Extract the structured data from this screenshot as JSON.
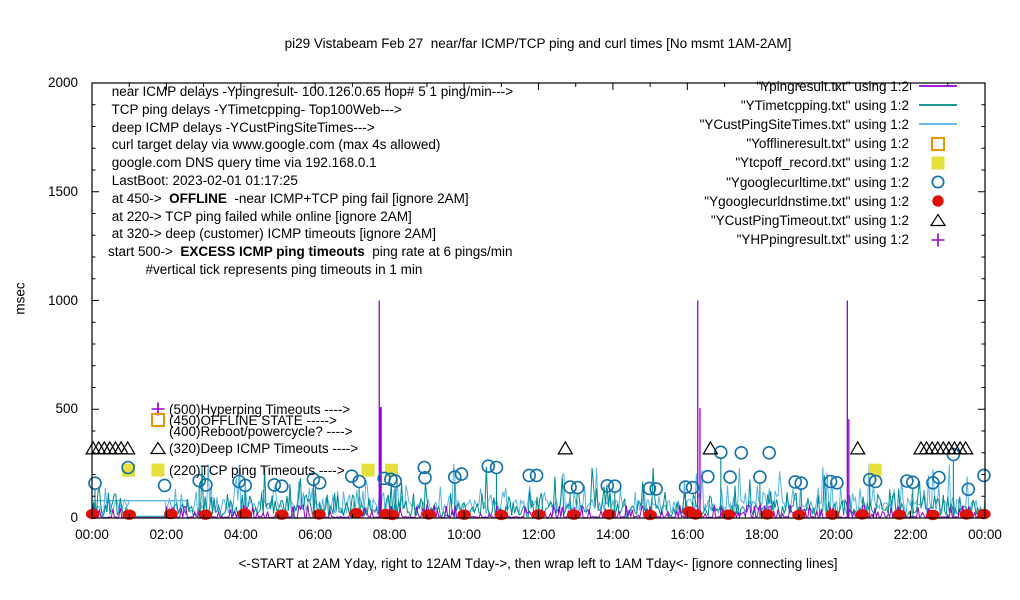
{
  "chart_data": {
    "type": "mixed-line-scatter",
    "title": "pi29 Vistabeam Feb 27  near/far ICMP/TCP ping and curl times [No msmt 1AM-2AM]",
    "ylabel": "msec",
    "xlabel": "<-START at 2AM Yday, right to 12AM Tday->, then wrap left to 1AM Tday<- [ignore connecting lines]",
    "ylim": [
      0,
      2000
    ],
    "xlim_hours": [
      0,
      24
    ],
    "grid": false,
    "legend_position": "top-right",
    "y_ticks": [
      0,
      500,
      1000,
      1500,
      2000
    ],
    "x_ticks": [
      {
        "hour": 0,
        "label": "00:00"
      },
      {
        "hour": 2,
        "label": "02:00"
      },
      {
        "hour": 4,
        "label": "04:00"
      },
      {
        "hour": 6,
        "label": "06:00"
      },
      {
        "hour": 8,
        "label": "08:00"
      },
      {
        "hour": 10,
        "label": "10:00"
      },
      {
        "hour": 12,
        "label": "12:00"
      },
      {
        "hour": 14,
        "label": "14:00"
      },
      {
        "hour": 16,
        "label": "16:00"
      },
      {
        "hour": 18,
        "label": "18:00"
      },
      {
        "hour": 20,
        "label": "20:00"
      },
      {
        "hour": 22,
        "label": "22:00"
      },
      {
        "hour": 24,
        "label": "00:00"
      }
    ],
    "no_msmt_window_hours": [
      1,
      2
    ],
    "noise_seed": 27,
    "colors": {
      "purple": "#9400d3",
      "teal": "#008b8b",
      "skyblue": "#56b4e9",
      "orange": "#e69500",
      "yellow": "#e6df3c",
      "blue": "#1372aa",
      "red": "#dd1205",
      "black": "#000000"
    },
    "noise_bands": {
      "deep_icmp": {
        "base": 12,
        "typ": [
          18,
          85
        ],
        "burst": [
          60,
          150
        ],
        "max": 255,
        "gap": 80
      },
      "tcp_ping": {
        "base": 3,
        "typ": [
          4,
          55
        ],
        "burst": [
          40,
          120
        ],
        "max": 240,
        "gap": 8
      },
      "near_icmp": {
        "base": 1,
        "typ": [
          1,
          7
        ],
        "burst": [
          8,
          55
        ],
        "max": 60,
        "gap": 2
      }
    },
    "wrap_connect_line": {
      "from_hour": 0,
      "to_hour": 2.6,
      "msec": 80
    },
    "near_icmp_spikes_msec": [
      [
        7.72,
        1000,
        1.3
      ],
      [
        7.75,
        510,
        2.8
      ],
      [
        16.28,
        1000,
        1.3
      ],
      [
        16.34,
        505,
        1.3
      ],
      [
        20.3,
        1000,
        1.3
      ],
      [
        20.34,
        455,
        1.3
      ]
    ],
    "tcp_off_squares": {
      "msec": 220,
      "hours": [
        0.98,
        7.42,
        8.05,
        21.05
      ]
    },
    "offline_squares": {
      "msec": 450,
      "hours": []
    },
    "deep_icmp_timeout_triangles": {
      "msec": 320,
      "hours": [
        0.03,
        0.18,
        0.33,
        0.48,
        0.63,
        0.78,
        0.96,
        12.72,
        16.62,
        20.58,
        22.28,
        22.43,
        22.58,
        22.73,
        22.88,
        23.03,
        23.18,
        23.33,
        23.48
      ]
    },
    "curl_time_circles": [
      [
        0.08,
        160
      ],
      [
        0.97,
        232
      ],
      [
        1.95,
        150
      ],
      [
        2.88,
        172
      ],
      [
        3.06,
        152
      ],
      [
        3.95,
        168
      ],
      [
        4.12,
        150
      ],
      [
        4.9,
        152
      ],
      [
        5.1,
        146
      ],
      [
        5.95,
        178
      ],
      [
        6.12,
        162
      ],
      [
        6.98,
        192
      ],
      [
        7.18,
        168
      ],
      [
        7.85,
        182
      ],
      [
        8.03,
        178
      ],
      [
        8.15,
        170
      ],
      [
        8.93,
        232
      ],
      [
        8.95,
        185
      ],
      [
        9.75,
        188
      ],
      [
        9.93,
        202
      ],
      [
        10.65,
        238
      ],
      [
        10.87,
        232
      ],
      [
        11.75,
        196
      ],
      [
        11.95,
        196
      ],
      [
        12.85,
        142
      ],
      [
        13.05,
        140
      ],
      [
        13.85,
        148
      ],
      [
        14.05,
        146
      ],
      [
        14.98,
        136
      ],
      [
        15.16,
        134
      ],
      [
        15.95,
        142
      ],
      [
        16.14,
        140
      ],
      [
        16.55,
        190
      ],
      [
        16.9,
        302
      ],
      [
        17.15,
        188
      ],
      [
        17.45,
        300
      ],
      [
        17.95,
        188
      ],
      [
        18.2,
        300
      ],
      [
        18.9,
        166
      ],
      [
        19.06,
        160
      ],
      [
        19.85,
        168
      ],
      [
        20.02,
        162
      ],
      [
        20.9,
        176
      ],
      [
        21.06,
        168
      ],
      [
        21.9,
        170
      ],
      [
        22.06,
        164
      ],
      [
        22.6,
        162
      ],
      [
        22.76,
        186
      ],
      [
        23.15,
        292
      ],
      [
        23.55,
        132
      ],
      [
        23.97,
        196
      ]
    ],
    "dns_time_dots": [
      [
        0.02,
        18
      ],
      [
        1.0,
        15
      ],
      [
        2.12,
        18
      ],
      [
        3.05,
        15
      ],
      [
        4.1,
        20
      ],
      [
        5.1,
        15
      ],
      [
        6.1,
        16
      ],
      [
        7.1,
        22
      ],
      [
        7.9,
        18
      ],
      [
        8.07,
        14
      ],
      [
        9.05,
        16
      ],
      [
        10.0,
        15
      ],
      [
        11.0,
        14
      ],
      [
        12.0,
        16
      ],
      [
        12.95,
        15
      ],
      [
        13.9,
        16
      ],
      [
        15.0,
        14
      ],
      [
        16.05,
        30
      ],
      [
        16.22,
        16
      ],
      [
        17.1,
        15
      ],
      [
        18.15,
        16
      ],
      [
        19.0,
        14
      ],
      [
        19.9,
        15
      ],
      [
        20.7,
        16
      ],
      [
        21.7,
        15
      ],
      [
        22.6,
        14
      ],
      [
        23.5,
        16
      ],
      [
        23.97,
        18
      ]
    ]
  },
  "legend": {
    "entries": [
      {
        "label": "\"Ypingresult.txt\" using 1:2",
        "marker": "hline-purple"
      },
      {
        "label": "\"YTimetcpping.txt\" using 1:2",
        "marker": "hline-teal"
      },
      {
        "label": "\"YCustPingSiteTimes.txt\" using 1:2",
        "marker": "hline-skyblue"
      },
      {
        "label": "\"Yofflineresult.txt\" using 1:2",
        "marker": "open-square-orange"
      },
      {
        "label": "\"Ytcpoff_record.txt\" using 1:2",
        "marker": "filled-square-yellow"
      },
      {
        "label": "\"Ygooglecurltime.txt\" using 1:2",
        "marker": "open-circle-blue"
      },
      {
        "label": "\"Ygooglecurldnstime.txt\" using 1:2",
        "marker": "filled-circle-red"
      },
      {
        "label": "\"YCustPingTimeout.txt\" using 1:2",
        "marker": "open-triangle-black"
      },
      {
        "label": "\"YHPpingresult.txt\" using 1:2",
        "marker": "plus-purple"
      }
    ]
  },
  "annotations": {
    "lines": [
      {
        "segments": [
          {
            "text": " near ICMP delays -Ypingresult- 100.126.0.65 hop# 5 1 ping/min--->",
            "bold": false
          }
        ]
      },
      {
        "segments": [
          {
            "text": " TCP ping delays -YTimetcpping- Top100Web--->",
            "bold": false
          }
        ]
      },
      {
        "segments": [
          {
            "text": " deep ICMP delays -YCustPingSiteTimes--->",
            "bold": false
          }
        ]
      },
      {
        "segments": [
          {
            "text": " curl target delay via www.google.com (max 4s allowed)",
            "bold": false
          }
        ]
      },
      {
        "segments": [
          {
            "text": " google.com DNS query time via 192.168.0.1",
            "bold": false
          }
        ]
      },
      {
        "segments": [
          {
            "text": " LastBoot: 2023-02-01 01:17:25",
            "bold": false
          }
        ]
      },
      {
        "segments": [
          {
            "text": " at 450->  ",
            "bold": false
          },
          {
            "text": "OFFLINE",
            "bold": true
          },
          {
            "text": "  -near ICMP+TCP ping fail [ignore 2AM]",
            "bold": false
          }
        ]
      },
      {
        "segments": [
          {
            "text": " at 220-> TCP ping failed while online [ignore 2AM]",
            "bold": false
          }
        ]
      },
      {
        "segments": [
          {
            "text": " at 320-> deep (customer) ICMP timeouts [ignore 2AM]",
            "bold": false
          }
        ]
      },
      {
        "segments": [
          {
            "text": "start 500->  ",
            "bold": false
          },
          {
            "text": "EXCESS ICMP ping timeouts",
            "bold": true
          },
          {
            "text": "  ping rate at 6 pings/min",
            "bold": false
          }
        ]
      },
      {
        "segments": [
          {
            "text": "          #vertical tick represents ping timeouts in 1 min",
            "bold": false
          }
        ]
      }
    ]
  },
  "mid_labels": [
    {
      "msec": 500,
      "marker": "plus-purple",
      "text": "(500)Hyperping Timeouts ---->"
    },
    {
      "msec": 450,
      "marker": "open-square-orange",
      "text": "(450)OFFLINE STATE ----->"
    },
    {
      "msec": 400,
      "marker": null,
      "text": "(400)Reboot/powercycle? ---->"
    },
    {
      "msec": 320,
      "marker": "open-triangle-black",
      "text": "(320)Deep ICMP Timeouts ---->"
    },
    {
      "msec": 220,
      "marker": "filled-square-yellow",
      "text": "(220)TCP ping Timeouts ---->"
    }
  ]
}
